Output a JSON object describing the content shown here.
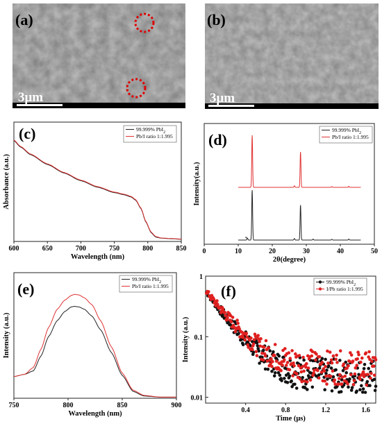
{
  "sem": [
    {
      "letter": "(a)",
      "scale": "3μm",
      "circles": 2
    },
    {
      "letter": "(b)",
      "scale": "3μm",
      "circles": 0
    }
  ],
  "colors": {
    "black_series": "#222222",
    "red_series": "#e03030",
    "sem_base": "#7d7d7d"
  },
  "chart_data": [
    {
      "panel": "(c)",
      "type": "line",
      "xlabel": "Wavelength (nm)",
      "ylabel": "Absorbance (a.u.)",
      "xlim": [
        600,
        850
      ],
      "xticks": [
        600,
        650,
        700,
        750,
        800,
        850
      ],
      "ylim": [
        0,
        1.1
      ],
      "legend_position": "top-right",
      "series": [
        {
          "name": "99.999% PbI2",
          "color": "#222222",
          "x": [
            600,
            610,
            625,
            650,
            675,
            700,
            725,
            750,
            765,
            775,
            782,
            790,
            797,
            805,
            812,
            820,
            835,
            850
          ],
          "y": [
            0.93,
            0.87,
            0.8,
            0.71,
            0.63,
            0.56,
            0.5,
            0.45,
            0.43,
            0.41,
            0.38,
            0.3,
            0.18,
            0.08,
            0.04,
            0.03,
            0.025,
            0.02
          ]
        },
        {
          "name": "Pb/I ratio 1:1.995",
          "color": "#e03030",
          "x": [
            600,
            610,
            625,
            650,
            675,
            700,
            725,
            750,
            765,
            775,
            782,
            790,
            797,
            805,
            812,
            820,
            835,
            850
          ],
          "y": [
            0.935,
            0.875,
            0.805,
            0.715,
            0.635,
            0.565,
            0.505,
            0.455,
            0.435,
            0.415,
            0.385,
            0.305,
            0.185,
            0.085,
            0.045,
            0.032,
            0.027,
            0.022
          ]
        }
      ]
    },
    {
      "panel": "(d)",
      "type": "line",
      "xlabel": "2θ(degree)",
      "ylabel": "Intensity(a.u.)",
      "xlim": [
        0,
        50
      ],
      "xticks": [
        0,
        10,
        20,
        30,
        40,
        50
      ],
      "legend_position": "top-right",
      "series": [
        {
          "name": "99.999% PbI2",
          "color": "#222222",
          "offset": 0,
          "peaks": [
            [
              12.7,
              0.04
            ],
            [
              14.1,
              1.0
            ],
            [
              26.5,
              0.03
            ],
            [
              28.3,
              0.7
            ],
            [
              32.0,
              0.02
            ],
            [
              37.5,
              0.015
            ],
            [
              42.5,
              0.02
            ]
          ]
        },
        {
          "name": "Pb/I ratio 1:1.995",
          "color": "#e03030",
          "offset": 1,
          "peaks": [
            [
              14.1,
              1.0
            ],
            [
              26.5,
              0.03
            ],
            [
              28.3,
              0.68
            ],
            [
              37.5,
              0.015
            ],
            [
              42.5,
              0.02
            ]
          ]
        }
      ]
    },
    {
      "panel": "(e)",
      "type": "line",
      "xlabel": "Wavelength (nm)",
      "ylabel": "Intensity (a.u.)",
      "xlim": [
        750,
        900
      ],
      "xticks": [
        750,
        800,
        850,
        900
      ],
      "legend_position": "top-right",
      "series": [
        {
          "name": "99.999% PbI2",
          "color": "#222222",
          "x": [
            750,
            760,
            768,
            775,
            782,
            790,
            797,
            803,
            806,
            810,
            815,
            822,
            830,
            840,
            850,
            860,
            870,
            885,
            900
          ],
          "y": [
            0.19,
            0.21,
            0.24,
            0.37,
            0.54,
            0.68,
            0.76,
            0.8,
            0.805,
            0.8,
            0.78,
            0.72,
            0.6,
            0.4,
            0.2,
            0.06,
            0.02,
            0.01,
            0.01
          ]
        },
        {
          "name": "Pb/I ratio 1:1.995",
          "color": "#e03030",
          "x": [
            750,
            760,
            768,
            775,
            782,
            790,
            797,
            803,
            806,
            810,
            815,
            822,
            830,
            840,
            850,
            860,
            870,
            885,
            900
          ],
          "y": [
            0.19,
            0.21,
            0.27,
            0.43,
            0.62,
            0.78,
            0.86,
            0.9,
            0.91,
            0.905,
            0.88,
            0.82,
            0.68,
            0.45,
            0.22,
            0.07,
            0.025,
            0.01,
            0.01
          ]
        }
      ]
    },
    {
      "panel": "(f)",
      "type": "scatter",
      "xlabel": "Time (μs)",
      "ylabel": "Intensity (a.u.)",
      "xlim": [
        0,
        1.7
      ],
      "xticks": [
        0.4,
        0.8,
        1.2,
        1.6
      ],
      "ylim": [
        0.008,
        1
      ],
      "yscale": "log",
      "yticks": [
        1,
        0.1,
        0.01
      ],
      "legend_position": "top-right",
      "series": [
        {
          "name": "99.999% PbI2",
          "color": "#111111",
          "decay": {
            "a": 0.55,
            "tau": 0.19,
            "floor": 0.022
          }
        },
        {
          "name": "I/Pb ratio 1:1.995",
          "color": "#e02020",
          "decay": {
            "a": 0.55,
            "tau": 0.2,
            "floor": 0.03
          }
        }
      ]
    }
  ]
}
